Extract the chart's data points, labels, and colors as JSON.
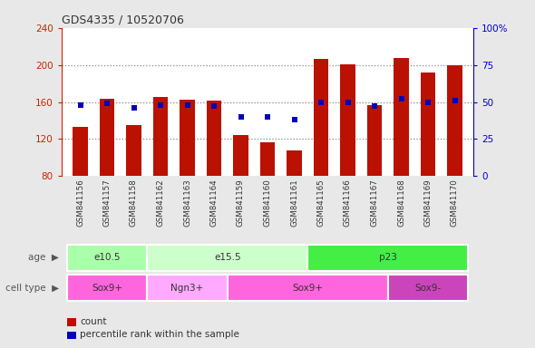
{
  "title": "GDS4335 / 10520706",
  "samples": [
    "GSM841156",
    "GSM841157",
    "GSM841158",
    "GSM841162",
    "GSM841163",
    "GSM841164",
    "GSM841159",
    "GSM841160",
    "GSM841161",
    "GSM841165",
    "GSM841166",
    "GSM841167",
    "GSM841168",
    "GSM841169",
    "GSM841170"
  ],
  "counts": [
    133,
    163,
    135,
    165,
    162,
    161,
    124,
    116,
    108,
    206,
    201,
    157,
    207,
    192,
    200
  ],
  "percentile_ranks": [
    48,
    49,
    46,
    48,
    48,
    47,
    40,
    40,
    38,
    50,
    50,
    47,
    52,
    50,
    51
  ],
  "ylim_left": [
    80,
    240
  ],
  "ylim_right": [
    0,
    100
  ],
  "yticks_left": [
    80,
    120,
    160,
    200,
    240
  ],
  "yticks_right": [
    0,
    25,
    50,
    75,
    100
  ],
  "bar_color": "#BB1100",
  "dot_color": "#0000BB",
  "grid_dotted_color": "#888888",
  "axis_color_left": "#CC2200",
  "axis_color_right": "#0000CC",
  "age_groups": [
    {
      "label": "e10.5",
      "start": 0,
      "end": 2,
      "color": "#AAFFAA"
    },
    {
      "label": "e15.5",
      "start": 3,
      "end": 8,
      "color": "#CCFFCC"
    },
    {
      "label": "p23",
      "start": 9,
      "end": 14,
      "color": "#44EE44"
    }
  ],
  "cell_type_groups": [
    {
      "label": "Sox9+",
      "start": 0,
      "end": 2,
      "color": "#FF66DD"
    },
    {
      "label": "Ngn3+",
      "start": 3,
      "end": 5,
      "color": "#FFAAFF"
    },
    {
      "label": "Sox9+",
      "start": 6,
      "end": 11,
      "color": "#FF66DD"
    },
    {
      "label": "Sox9-",
      "start": 12,
      "end": 14,
      "color": "#CC44BB"
    }
  ],
  "bg_color": "#E8E8E8",
  "plot_bg": "#FFFFFF"
}
